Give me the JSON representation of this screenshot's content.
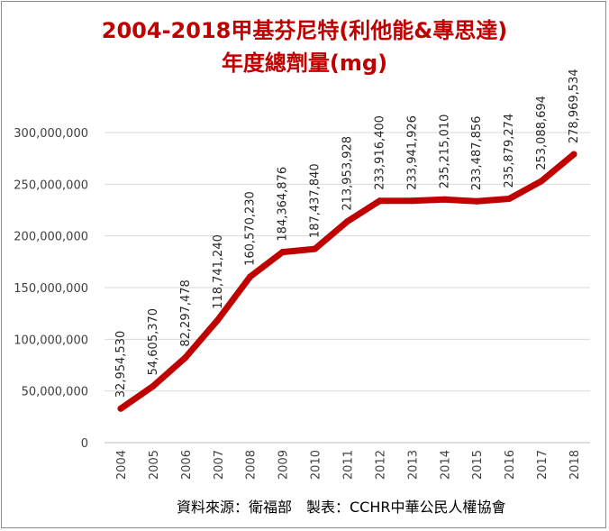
{
  "chart_data": {
    "type": "line",
    "title": "2004-2018甲基芬尼特(利他能&專思達)",
    "subtitle": "年度總劑量(mg)",
    "xlabel": "",
    "ylabel": "",
    "categories": [
      "2004",
      "2005",
      "2006",
      "2007",
      "2008",
      "2009",
      "2010",
      "2011",
      "2012",
      "2013",
      "2014",
      "2015",
      "2016",
      "2017",
      "2018"
    ],
    "series": [
      {
        "name": "",
        "values": [
          32954530,
          54605370,
          82297478,
          118741240,
          160570230,
          184364876,
          187437840,
          213953928,
          233916400,
          233941926,
          235215010,
          233487856,
          235879274,
          253088694,
          278969534
        ],
        "labels": [
          "32,954,530",
          "54,605,370",
          "82,297,478",
          "118,741,240",
          "160,570,230",
          "184,364,876",
          "187,437,840",
          "213,953,928",
          "233,916,400",
          "233,941,926",
          "235,215,010",
          "233,487,856",
          "235,879,274",
          "253,088,694",
          "278,969,534"
        ],
        "color": "#c00000"
      }
    ],
    "ylim": [
      0,
      300000000
    ],
    "yticks": [
      0,
      50000000,
      100000000,
      150000000,
      200000000,
      250000000,
      300000000
    ],
    "ytick_labels": [
      "0",
      "50,000,000",
      "100,000,000",
      "150,000,000",
      "200,000,000",
      "250,000,000",
      "300,000,000"
    ],
    "grid": true,
    "legend": "none"
  },
  "source_text": "資料來源：衛福部　製表：CCHR中華公民人權協會",
  "colors": {
    "line": "#c00000",
    "grid": "#d9d9d9",
    "axis": "#bfbfbf",
    "title": "#c00000"
  }
}
